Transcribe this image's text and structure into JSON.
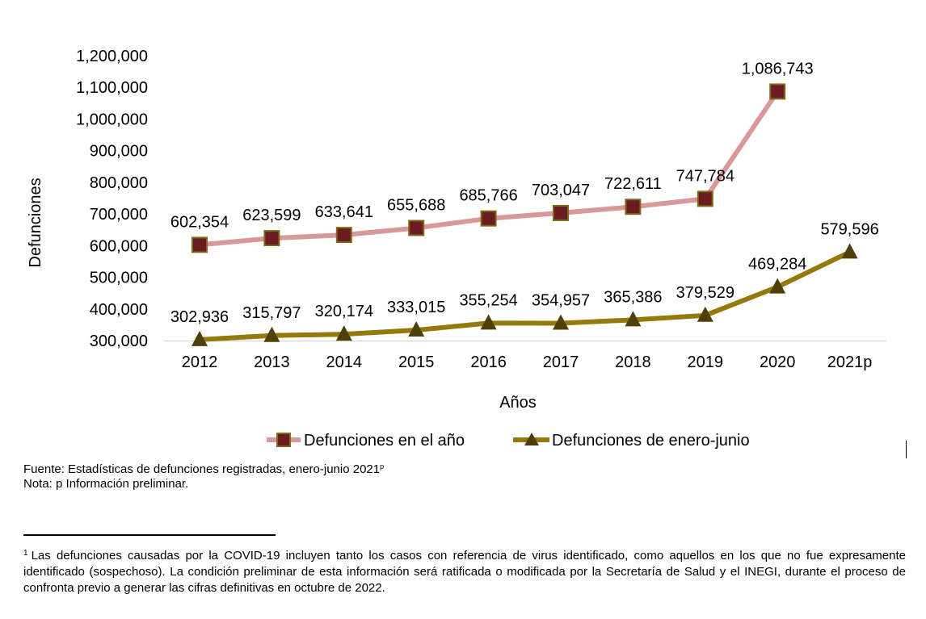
{
  "chart_data": {
    "type": "line",
    "categories": [
      "2012",
      "2013",
      "2014",
      "2015",
      "2016",
      "2017",
      "2018",
      "2019",
      "2020",
      "2021p"
    ],
    "series": [
      {
        "name": "Defunciones en el año",
        "values": [
          602354,
          623599,
          633641,
          655688,
          685766,
          703047,
          722611,
          747784,
          1086743,
          null
        ],
        "labels": [
          "602,354",
          "623,599",
          "633,641",
          "655,688",
          "685,766",
          "703,047",
          "722,611",
          "747,784",
          "1,086,743",
          ""
        ],
        "line_color": "#D9999B",
        "marker": "square",
        "marker_fill": "#6B1C20",
        "marker_edge": "#7E6A1A"
      },
      {
        "name": "Defunciones de enero-junio",
        "values": [
          302936,
          315797,
          320174,
          333015,
          355254,
          354957,
          365386,
          379529,
          469284,
          579596
        ],
        "labels": [
          "302,936",
          "315,797",
          "320,174",
          "333,015",
          "355,254",
          "354,957",
          "365,386",
          "379,529",
          "469,284",
          "579,596"
        ],
        "line_color": "#947A0B",
        "marker": "triangle",
        "marker_fill": "#4F3F0A"
      }
    ],
    "ylabel": "Defunciones",
    "xlabel": "Años",
    "ylim": [
      300000,
      1200000
    ],
    "yticks": [
      300000,
      400000,
      500000,
      600000,
      700000,
      800000,
      900000,
      1000000,
      1100000,
      1200000
    ],
    "ytick_labels": [
      "300,000",
      "400,000",
      "500,000",
      "600,000",
      "700,000",
      "800,000",
      "900,000",
      "1,000,000",
      "1,100,000",
      "1,200,000"
    ],
    "legend": "bottom",
    "grid": false
  },
  "notes": {
    "fuente": "Fuente: Estadísticas de defunciones registradas, enero-junio 2021",
    "fuente_sup": "p",
    "nota": "Nota: p Información preliminar."
  },
  "footnote": {
    "mark": "1",
    "text": "Las defunciones causadas por la COVID-19 incluyen tanto los casos con referencia de virus identificado, como aquellos en los que no fue expresamente identificado (sospechoso). La condición preliminar de esta información será ratificada o modificada por la Secretaría de Salud y el INEGI, durante el proceso de confronta previo a generar las cifras definitivas en octubre de 2022."
  }
}
